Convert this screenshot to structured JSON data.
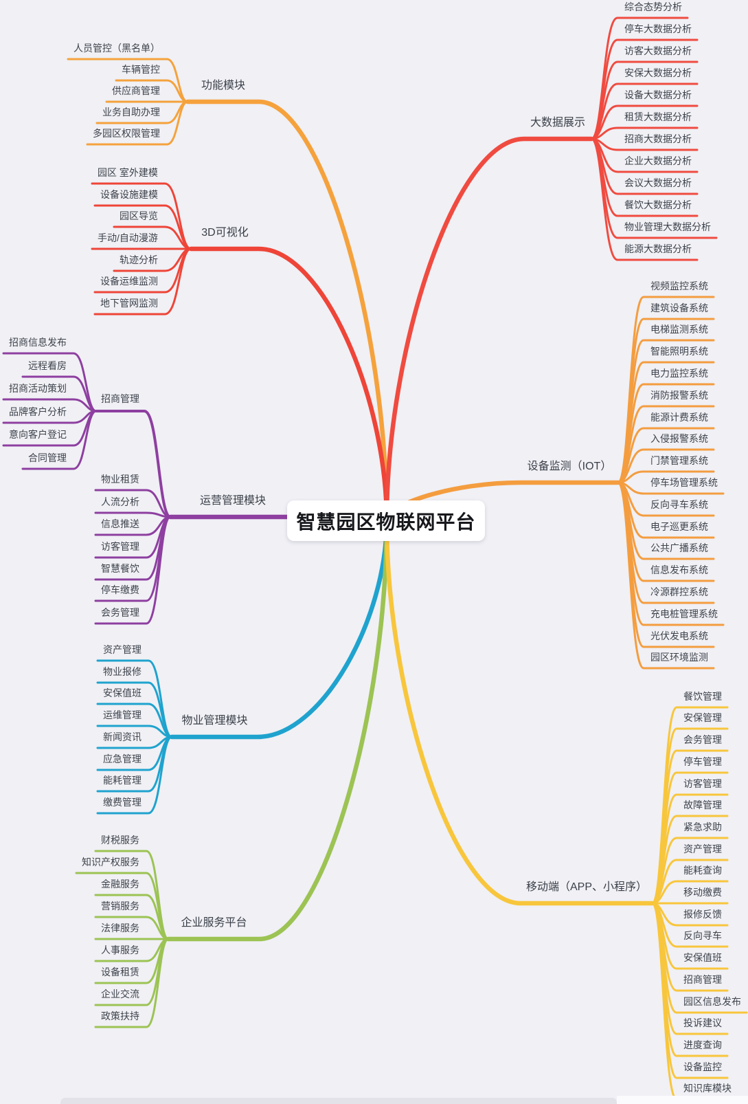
{
  "title": "智慧园区物联网平台",
  "canvas": {
    "background": "#F0F0F5"
  },
  "branches": [
    {
      "id": "function-modules",
      "label": "功能模块",
      "color": "#F5A23C",
      "side": "left",
      "children": [
        {
          "label": "人员管控（黑名单）"
        },
        {
          "label": "车辆管控"
        },
        {
          "label": "供应商管理"
        },
        {
          "label": "业务自助办理"
        },
        {
          "label": "多园区权限管理"
        }
      ]
    },
    {
      "id": "3d-visualization",
      "label": "3D可视化",
      "color": "#EE4538",
      "side": "left",
      "children": [
        {
          "label": "园区 室外建模"
        },
        {
          "label": "设备设施建模"
        },
        {
          "label": "园区导览"
        },
        {
          "label": "手动/自动漫游"
        },
        {
          "label": "轨迹分析"
        },
        {
          "label": "设备运维监测"
        },
        {
          "label": "地下管网监测"
        }
      ]
    },
    {
      "id": "operation-management",
      "label": "运营管理模块",
      "color": "#8E3FA0",
      "side": "left",
      "children": [
        {
          "id": "investment-management",
          "label": "招商管理",
          "children": [
            {
              "label": "招商信息发布"
            },
            {
              "label": "远程看房"
            },
            {
              "label": "招商活动策划"
            },
            {
              "label": "品牌客户分析"
            },
            {
              "label": "意向客户登记"
            },
            {
              "label": "合同管理"
            }
          ]
        },
        {
          "label": "物业租赁"
        },
        {
          "label": "人流分析"
        },
        {
          "label": "信息推送"
        },
        {
          "label": "访客管理"
        },
        {
          "label": "智慧餐饮"
        },
        {
          "label": "停车缴费"
        },
        {
          "label": "会务管理"
        }
      ]
    },
    {
      "id": "property-management",
      "label": "物业管理模块",
      "color": "#1FA3CE",
      "side": "left",
      "children": [
        {
          "label": "资产管理"
        },
        {
          "label": "物业报修"
        },
        {
          "label": "安保值班"
        },
        {
          "label": "运维管理"
        },
        {
          "label": "新闻资讯"
        },
        {
          "label": "应急管理"
        },
        {
          "label": "能耗管理"
        },
        {
          "label": "缴费管理"
        }
      ]
    },
    {
      "id": "enterprise-services",
      "label": "企业服务平台",
      "color": "#9CC353",
      "side": "left",
      "children": [
        {
          "label": "财税服务"
        },
        {
          "label": "知识产权服务"
        },
        {
          "label": "金融服务"
        },
        {
          "label": "营销服务"
        },
        {
          "label": "法律服务"
        },
        {
          "label": "人事服务"
        },
        {
          "label": "设备租赁"
        },
        {
          "label": "企业交流"
        },
        {
          "label": "政策扶持"
        }
      ]
    },
    {
      "id": "big-data-display",
      "label": "大数据展示",
      "color": "#F04B40",
      "side": "right",
      "children": [
        {
          "label": "综合态势分析"
        },
        {
          "label": "停车大数据分析"
        },
        {
          "label": "访客大数据分析"
        },
        {
          "label": "安保大数据分析"
        },
        {
          "label": "设备大数据分析"
        },
        {
          "label": "租赁大数据分析"
        },
        {
          "label": "招商大数据分析"
        },
        {
          "label": "企业大数据分析"
        },
        {
          "label": "会议大数据分析"
        },
        {
          "label": "餐饮大数据分析"
        },
        {
          "label": "物业管理大数据分析"
        },
        {
          "label": "能源大数据分析"
        }
      ]
    },
    {
      "id": "device-monitoring-iot",
      "label": "设备监测（IOT）",
      "color": "#F49D3F",
      "side": "right",
      "children": [
        {
          "label": "视频监控系统"
        },
        {
          "label": "建筑设备系统"
        },
        {
          "label": "电梯监测系统"
        },
        {
          "label": "智能照明系统"
        },
        {
          "label": "电力监控系统"
        },
        {
          "label": "消防报警系统"
        },
        {
          "label": "能源计费系统"
        },
        {
          "label": "入侵报警系统"
        },
        {
          "label": "门禁管理系统"
        },
        {
          "label": "停车场管理系统"
        },
        {
          "label": "反向寻车系统"
        },
        {
          "label": "电子巡更系统"
        },
        {
          "label": "公共广播系统"
        },
        {
          "label": "信息发布系统"
        },
        {
          "label": "冷源群控系统"
        },
        {
          "label": "充电桩管理系统"
        },
        {
          "label": "光伏发电系统"
        },
        {
          "label": "园区环境监测"
        }
      ]
    },
    {
      "id": "mobile",
      "label": "移动端（APP、小程序）",
      "color": "#F8C63C",
      "side": "right",
      "children": [
        {
          "label": "餐饮管理"
        },
        {
          "label": "安保管理"
        },
        {
          "label": "会务管理"
        },
        {
          "label": "停车管理"
        },
        {
          "label": "访客管理"
        },
        {
          "label": "故障管理"
        },
        {
          "label": "紧急求助"
        },
        {
          "label": "资产管理"
        },
        {
          "label": "能耗查询"
        },
        {
          "label": "移动缴费"
        },
        {
          "label": "报修反馈"
        },
        {
          "label": "反向寻车"
        },
        {
          "label": "安保值班"
        },
        {
          "label": "招商管理"
        },
        {
          "label": "园区信息发布"
        },
        {
          "label": "投诉建议"
        },
        {
          "label": "进度查询"
        },
        {
          "label": "设备监控"
        },
        {
          "label": "知识库模块"
        }
      ]
    }
  ]
}
